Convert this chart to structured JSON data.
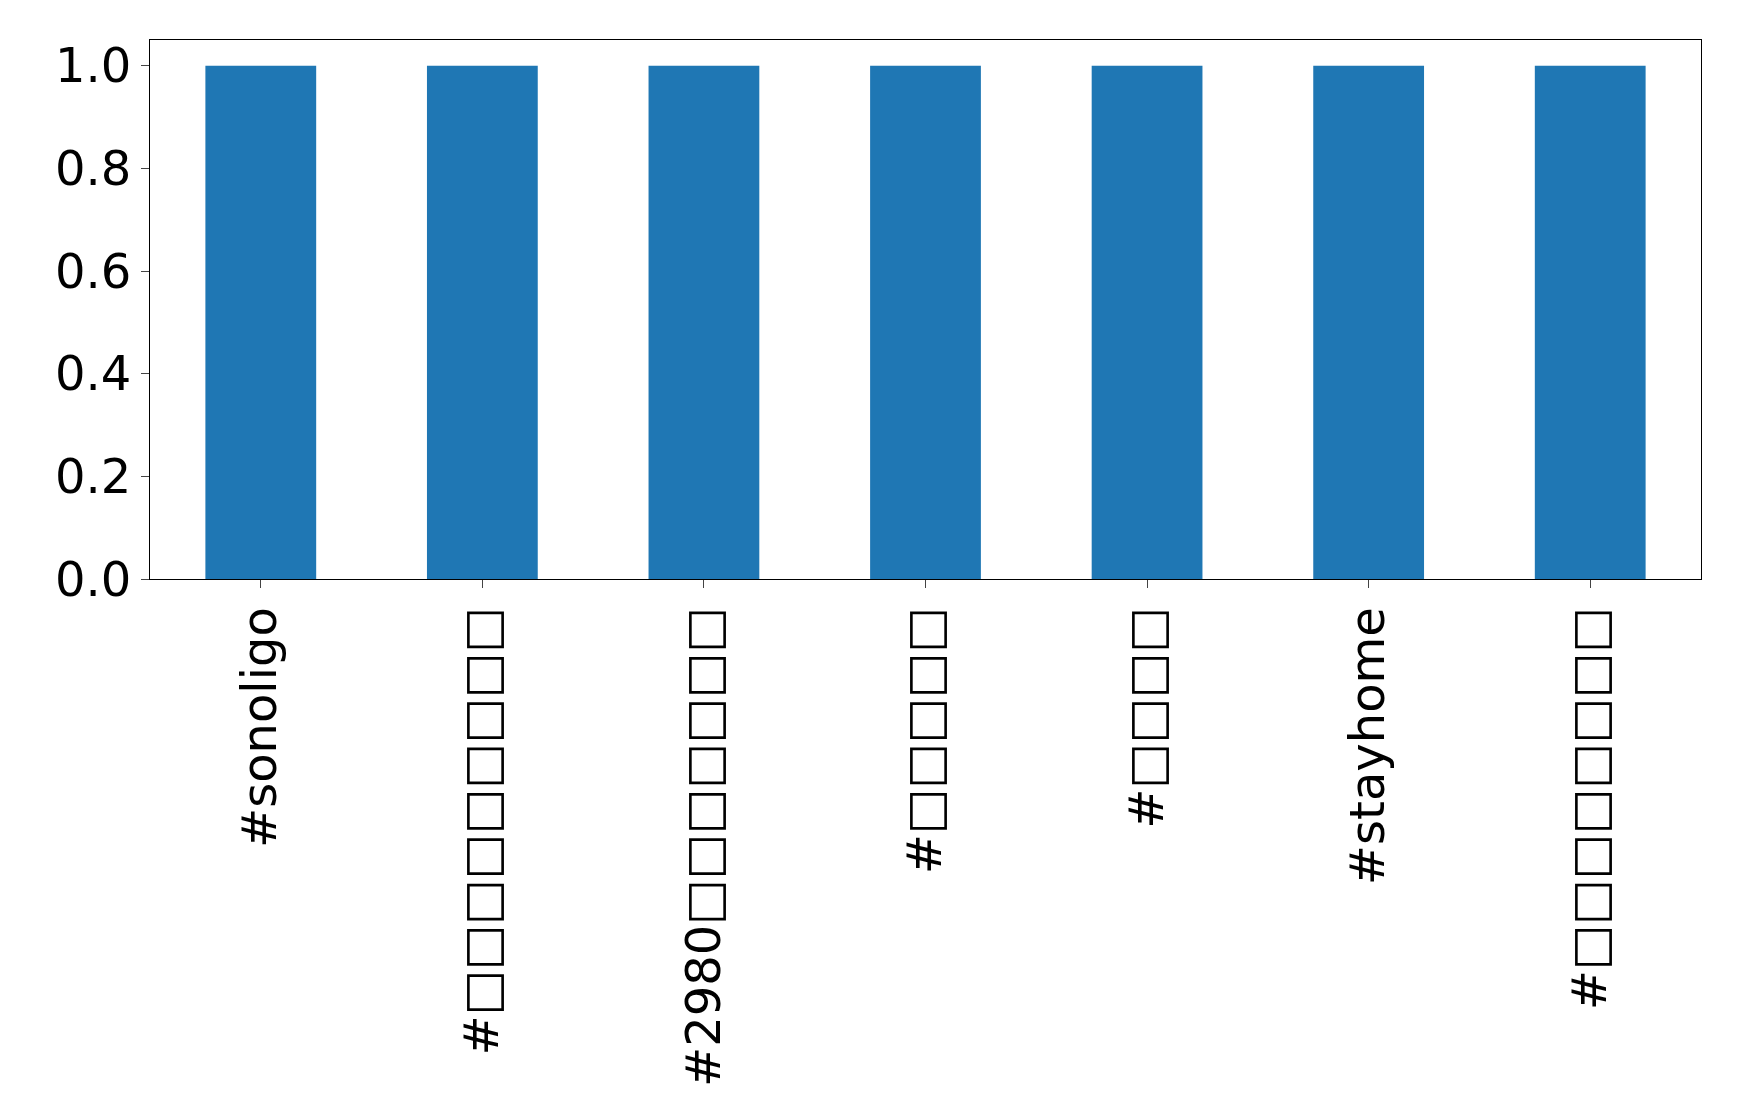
{
  "chart_data": {
    "type": "bar",
    "categories": [
      "#sonoligo",
      "#□□□□□□□□□",
      "#2980□□□□□□□",
      "#□□□□□",
      "#□□□□",
      "#stayhome",
      "#□□□□□□□□"
    ],
    "values": [
      1,
      1,
      1,
      1,
      1,
      1,
      1
    ],
    "color": "#1f77b4",
    "ylim": [
      0,
      1.05
    ],
    "yticks": [
      {
        "value": 0,
        "label": "0.0"
      },
      {
        "value": 0.2,
        "label": "0.2"
      },
      {
        "value": 0.4,
        "label": "0.4"
      },
      {
        "value": 0.6,
        "label": "0.6"
      },
      {
        "value": 0.8,
        "label": "0.8"
      },
      {
        "value": 1,
        "label": "1.0"
      }
    ],
    "grid": false,
    "legend": false
  }
}
